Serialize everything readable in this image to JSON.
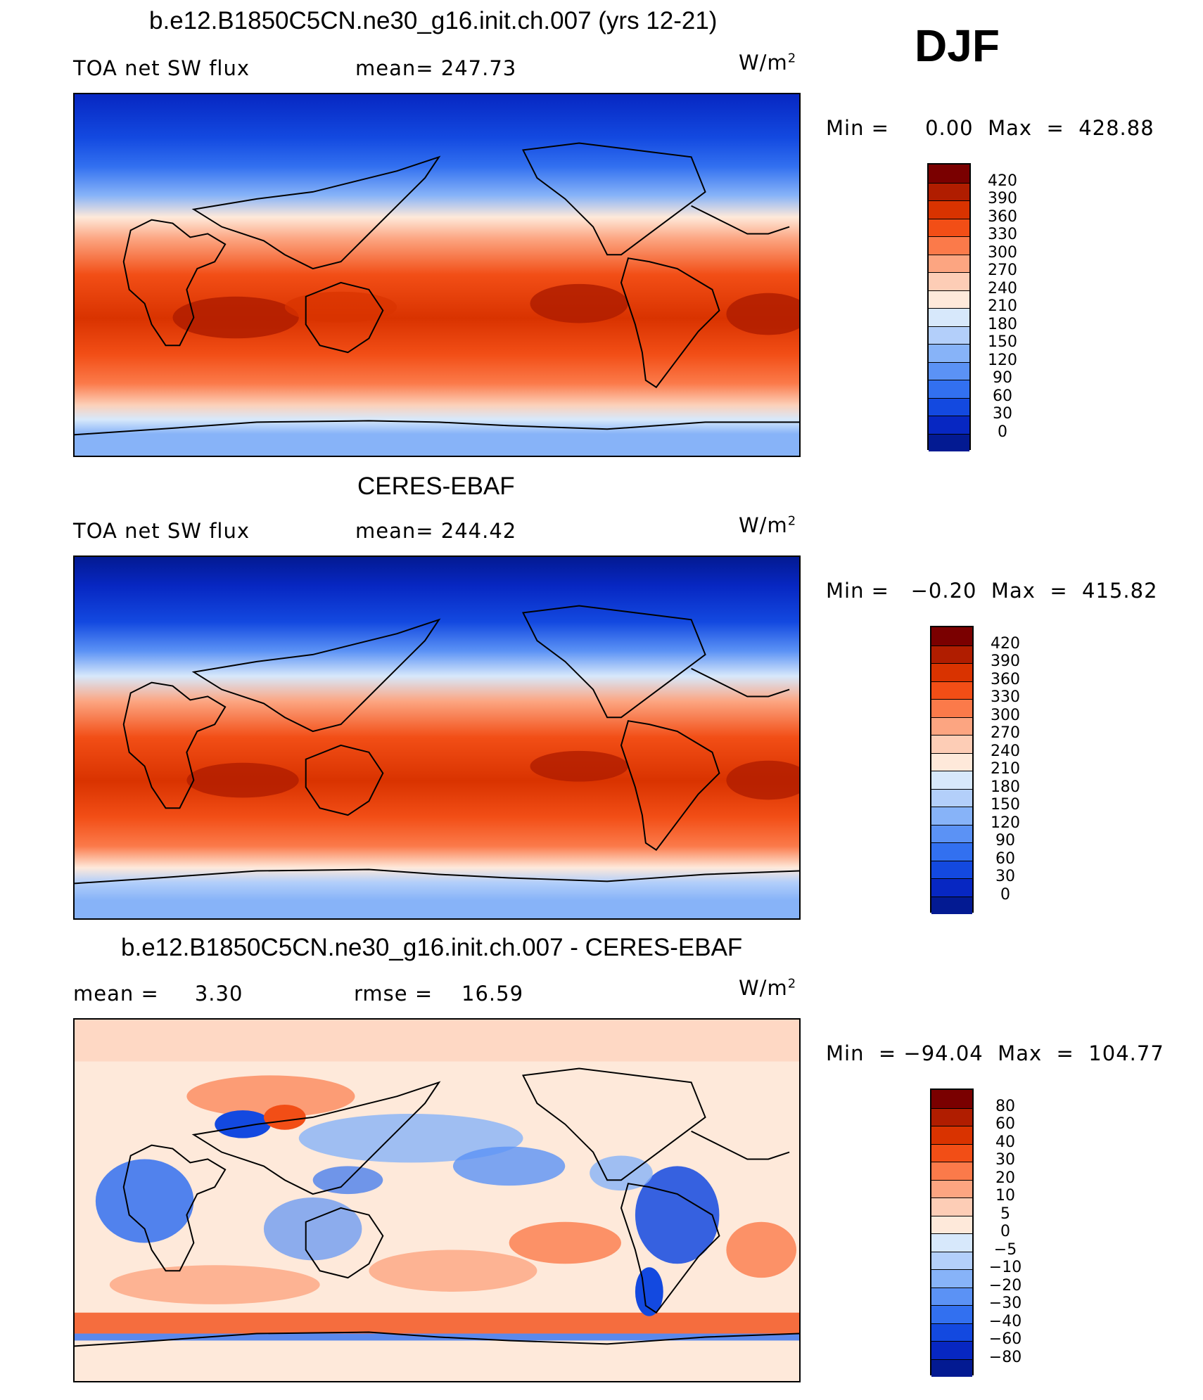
{
  "season": "DJF",
  "panels": [
    {
      "title": "b.e12.B1850C5CN.ne30_g16.init.ch.007 (yrs 12-21)",
      "left_label": "TOA net SW flux",
      "center_label": "mean=  247.73",
      "units_base": "W/m",
      "units_exp": "2",
      "minmax": "Min =     0.00  Max  =  428.88",
      "colorbar": {
        "levels": [
          "420",
          "390",
          "360",
          "330",
          "300",
          "270",
          "240",
          "210",
          "180",
          "150",
          "120",
          "90",
          "60",
          "30",
          "0"
        ],
        "colors": [
          "#7a0000",
          "#b01d00",
          "#d93300",
          "#f24e16",
          "#fb7a4a",
          "#fca581",
          "#fdcdb6",
          "#fee9da",
          "#d7e8fb",
          "#b3cffa",
          "#87b3f8",
          "#5b92f5",
          "#3270f0",
          "#1349e0",
          "#0727c2",
          "#031a92"
        ]
      }
    },
    {
      "title": "CERES-EBAF",
      "left_label": "TOA net SW flux",
      "center_label": "mean=  244.42",
      "units_base": "W/m",
      "units_exp": "2",
      "minmax": "Min =   −0.20  Max  =  415.82",
      "colorbar": {
        "levels": [
          "420",
          "390",
          "360",
          "330",
          "300",
          "270",
          "240",
          "210",
          "180",
          "150",
          "120",
          "90",
          "60",
          "30",
          "0"
        ],
        "colors": [
          "#7a0000",
          "#b01d00",
          "#d93300",
          "#f24e16",
          "#fb7a4a",
          "#fca581",
          "#fdcdb6",
          "#fee9da",
          "#d7e8fb",
          "#b3cffa",
          "#87b3f8",
          "#5b92f5",
          "#3270f0",
          "#1349e0",
          "#0727c2",
          "#031a92"
        ]
      }
    },
    {
      "title": "b.e12.B1850C5CN.ne30_g16.init.ch.007 - CERES-EBAF",
      "left_label": "mean =     3.30",
      "center_label": "rmse =    16.59",
      "units_base": "W/m",
      "units_exp": "2",
      "minmax": "Min  = −94.04  Max  =  104.77",
      "colorbar": {
        "levels": [
          "80",
          "60",
          "40",
          "30",
          "20",
          "10",
          "5",
          "0",
          "−5",
          "−10",
          "−20",
          "−30",
          "−40",
          "−60",
          "−80"
        ],
        "colors": [
          "#7a0000",
          "#b01d00",
          "#d93300",
          "#f24e16",
          "#fb7a4a",
          "#fca581",
          "#fdcdb6",
          "#fee9da",
          "#d7e8fb",
          "#b3cffa",
          "#87b3f8",
          "#5b92f5",
          "#3270f0",
          "#1349e0",
          "#0727c2",
          "#031a92"
        ]
      }
    }
  ]
}
